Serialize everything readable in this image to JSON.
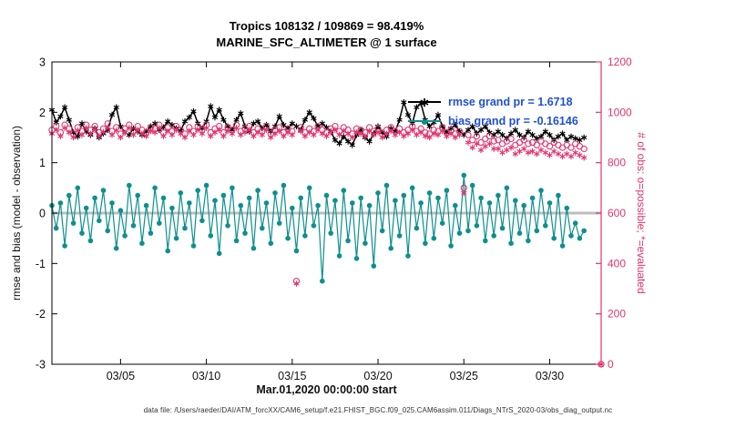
{
  "legend": {
    "text_color": "#2050d0",
    "items": [
      {
        "series": "rmse",
        "label": "rmse grand pr = 1.6718"
      },
      {
        "series": "bias",
        "label": "bias grand pr = -0.16146"
      }
    ]
  },
  "footer": {
    "data_file": "data file: /Users/raeder/DAI/ATM_forcXX/CAM6_setup/f.e21.FHIST_BGC.f09_025.CAM6assim.011/Diags_NTrS_2020-03/obs_diag_output.nc"
  },
  "chart_data": {
    "type": "line",
    "title": "Tropics 108132 / 109869 = 98.419%",
    "subtitle": "MARINE_SFC_ALTIMETER @ 1 surface",
    "xlabel": "Mar.01,2020 00:00:00 start",
    "ylabel_left": "rmse and bias (model - observation)",
    "ylabel_right": "# of obs: o=possible; *=evaluated",
    "grid": false,
    "legend_position": "top-right-inside",
    "xlim_days": [
      0,
      32
    ],
    "ylim_left": [
      -3,
      3
    ],
    "ylim_right": [
      0,
      1200
    ],
    "yticks_left": [
      -3,
      -2,
      -1,
      0,
      1,
      2,
      3
    ],
    "yticks_right": [
      0,
      200,
      400,
      600,
      800,
      1000,
      1200
    ],
    "x_tick_days": [
      4,
      9,
      14,
      19,
      24,
      29
    ],
    "x_tick_labels": [
      "03/05",
      "03/10",
      "03/15",
      "03/20",
      "03/25",
      "03/30"
    ],
    "time_step_days": 0.25,
    "zero_line": {
      "color": "#bdbdbd",
      "width": 3
    },
    "series": [
      {
        "name": "bias",
        "axis": "left",
        "color": "#0e8f8f",
        "marker": "circle-filled",
        "line": true,
        "line_width": 1.2,
        "values": [
          0.15,
          -0.3,
          0.2,
          -0.65,
          0.35,
          -0.2,
          0.5,
          -0.4,
          0.1,
          -0.55,
          0.3,
          -0.15,
          0.45,
          -0.35,
          0.2,
          -0.7,
          0.05,
          -0.45,
          0.55,
          -0.25,
          0.35,
          -0.6,
          0.15,
          -0.4,
          0.5,
          -0.2,
          0.3,
          -0.75,
          0.1,
          -0.5,
          0.4,
          -0.3,
          0.2,
          -0.65,
          0.45,
          -0.15,
          0.55,
          -0.45,
          0.25,
          -0.8,
          0.35,
          -0.25,
          0.5,
          -0.55,
          0.15,
          -0.4,
          0.3,
          -0.7,
          0.45,
          -0.3,
          0.2,
          -0.6,
          0.4,
          -0.2,
          0.55,
          -0.5,
          0.1,
          -0.75,
          0.3,
          -0.45,
          0.5,
          -0.25,
          0.15,
          -1.35,
          0.35,
          -0.4,
          0.25,
          -0.85,
          0.45,
          -0.55,
          0.2,
          -0.9,
          0.3,
          -0.6,
          0.15,
          -1.05,
          0.4,
          -0.35,
          0.55,
          -0.7,
          0.25,
          -0.45,
          0.35,
          -0.85,
          0.5,
          -0.3,
          0.2,
          -0.6,
          0.4,
          -0.5,
          0.3,
          -0.2,
          0.45,
          -0.65,
          0.15,
          -0.4,
          0.75,
          -0.35,
          0.55,
          -0.25,
          0.3,
          -0.55,
          0.2,
          -0.45,
          0.35,
          -0.3,
          0.5,
          -0.6,
          0.25,
          -0.4,
          0.15,
          -0.55,
          0.3,
          -0.35,
          0.45,
          -0.25,
          0.2,
          -0.5,
          0.35,
          -0.65,
          0.1,
          -0.45,
          -0.2,
          -0.5,
          -0.35
        ]
      },
      {
        "name": "rmse",
        "axis": "left",
        "color": "#000000",
        "marker": "asterisk",
        "line": true,
        "line_width": 1.5,
        "values": [
          2.05,
          1.8,
          1.92,
          2.1,
          1.85,
          1.6,
          1.52,
          1.78,
          1.62,
          1.55,
          1.68,
          1.5,
          1.58,
          1.65,
          1.95,
          2.1,
          1.72,
          1.6,
          1.55,
          1.68,
          1.62,
          1.55,
          1.62,
          1.72,
          1.78,
          1.65,
          1.7,
          1.82,
          1.75,
          1.68,
          1.63,
          1.82,
          1.9,
          2.02,
          1.78,
          1.68,
          1.82,
          2.12,
          1.9,
          2.05,
          1.85,
          1.72,
          1.65,
          1.85,
          1.98,
          1.72,
          1.62,
          1.78,
          1.82,
          1.68,
          1.75,
          1.62,
          1.72,
          1.92,
          1.75,
          1.68,
          1.78,
          1.72,
          1.65,
          1.85,
          2.0,
          1.88,
          1.72,
          1.78,
          1.7,
          1.62,
          1.45,
          1.38,
          1.52,
          1.42,
          1.35,
          1.55,
          1.65,
          1.5,
          1.42,
          1.58,
          1.72,
          1.6,
          1.52,
          1.68,
          1.62,
          1.85,
          2.2,
          1.95,
          1.78,
          2.1,
          2.18,
          1.85,
          1.72,
          1.8,
          1.95,
          1.72,
          1.6,
          1.68,
          1.75,
          1.62,
          1.55,
          1.65,
          1.72,
          1.58,
          1.65,
          1.72,
          1.6,
          1.55,
          1.62,
          1.55,
          1.48,
          1.58,
          1.65,
          1.55,
          1.5,
          1.62,
          1.55,
          1.48,
          1.52,
          1.62,
          1.55,
          1.45,
          1.52,
          1.58,
          1.45,
          1.52,
          1.48,
          1.45,
          1.5
        ]
      },
      {
        "name": "possible",
        "axis": "right",
        "color": "#e2346f",
        "marker": "circle-open",
        "line": false,
        "line_width": 0,
        "values": [
          930,
          945,
          920,
          950,
          935,
          915,
          940,
          925,
          950,
          930,
          945,
          920,
          935,
          955,
          925,
          940,
          915,
          935,
          950,
          925,
          945,
          930,
          920,
          940,
          935,
          950,
          920,
          940,
          925,
          945,
          930,
          915,
          940,
          925,
          945,
          930,
          950,
          920,
          935,
          945,
          920,
          940,
          930,
          950,
          925,
          935,
          945,
          920,
          935,
          925,
          945,
          915,
          930,
          940,
          920,
          935,
          925,
          330,
          940,
          920,
          935,
          925,
          945,
          930,
          920,
          935,
          945,
          925,
          940,
          930,
          915,
          935,
          930,
          920,
          940,
          925,
          935,
          915,
          930,
          940,
          925,
          935,
          920,
          930,
          945,
          925,
          935,
          920,
          915,
          930,
          925,
          940,
          920,
          930,
          915,
          925,
          700,
          910,
          890,
          905,
          880,
          895,
          905,
          885,
          890,
          875,
          885,
          895,
          870,
          880,
          890,
          875,
          880,
          870,
          885,
          875,
          865,
          880,
          870,
          860,
          870,
          860,
          875,
          865,
          855,
          null,
          null,
          null,
          0
        ]
      },
      {
        "name": "evaluated",
        "axis": "right",
        "color": "#e2346f",
        "marker": "asterisk",
        "line": false,
        "line_width": 0,
        "values": [
          915,
          930,
          905,
          938,
          920,
          900,
          928,
          910,
          938,
          915,
          930,
          905,
          922,
          940,
          910,
          928,
          900,
          920,
          938,
          910,
          930,
          915,
          905,
          925,
          920,
          938,
          905,
          925,
          910,
          930,
          915,
          900,
          925,
          910,
          930,
          915,
          938,
          905,
          920,
          930,
          905,
          925,
          915,
          938,
          910,
          920,
          930,
          905,
          920,
          910,
          930,
          900,
          915,
          925,
          905,
          920,
          910,
          320,
          925,
          905,
          920,
          910,
          930,
          915,
          905,
          920,
          930,
          910,
          925,
          915,
          900,
          920,
          915,
          905,
          925,
          910,
          920,
          900,
          915,
          925,
          910,
          920,
          905,
          915,
          930,
          910,
          920,
          905,
          900,
          915,
          910,
          925,
          905,
          915,
          900,
          910,
          680,
          880,
          860,
          875,
          850,
          865,
          875,
          855,
          855,
          840,
          850,
          860,
          835,
          845,
          855,
          840,
          845,
          835,
          850,
          840,
          830,
          845,
          835,
          825,
          835,
          825,
          840,
          830,
          820,
          null,
          null,
          null,
          0
        ]
      }
    ]
  }
}
